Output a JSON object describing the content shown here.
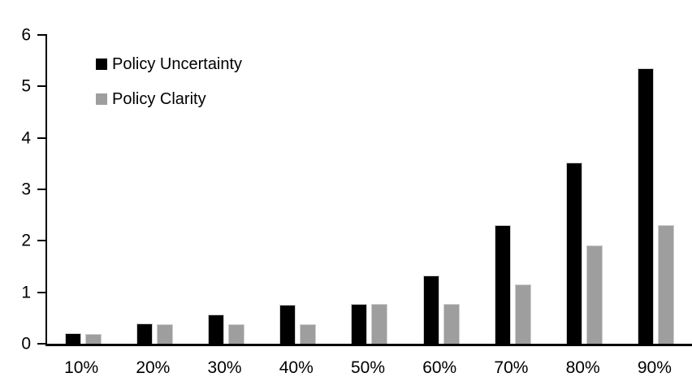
{
  "chart_data": {
    "type": "bar",
    "title": "",
    "xlabel": "",
    "ylabel": "",
    "categories": [
      "10%",
      "20%",
      "30%",
      "40%",
      "50%",
      "60%",
      "70%",
      "80%",
      "90%"
    ],
    "series": [
      {
        "name": "Policy Uncertainty",
        "color": "#000000",
        "values": [
          0.2,
          0.39,
          0.57,
          0.76,
          0.78,
          1.33,
          2.31,
          3.52,
          5.35
        ]
      },
      {
        "name": "Policy Clarity",
        "color": "#9e9e9e",
        "values": [
          0.19,
          0.38,
          0.38,
          0.38,
          0.77,
          0.77,
          1.15,
          1.91,
          2.3
        ]
      }
    ],
    "ylim": [
      0,
      6
    ],
    "yticks": [
      0,
      1,
      2,
      3,
      4,
      5,
      6
    ],
    "grid": false,
    "legend_position": "top-left-inside",
    "axis_color": "#000000",
    "bar_outline_color": "#cfcfcf"
  }
}
